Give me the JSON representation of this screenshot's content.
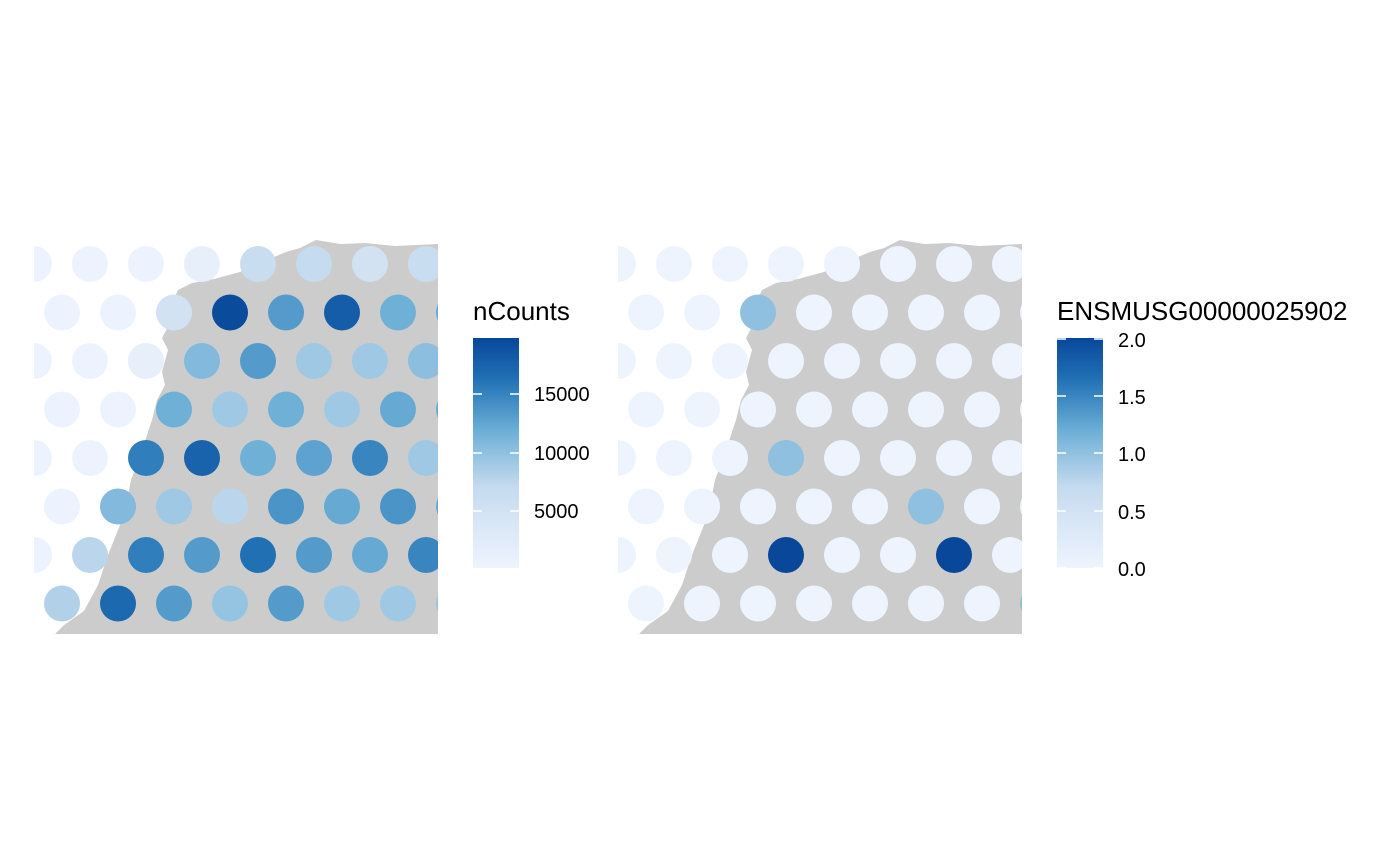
{
  "chart_data": [
    {
      "type": "heatmap",
      "subtype": "spatial spot plot on tissue section",
      "legend_title": "nCounts",
      "legend_position": "right",
      "colorbar_ticks": [
        "5000",
        "10000",
        "15000"
      ],
      "color_range": [
        800,
        19800
      ],
      "low_color": "#EEF4FE",
      "high_color": "#08479A",
      "tissue_color": "#CCCCCC",
      "rows": [
        [
          1000,
          1000,
          1000,
          2000,
          7000,
          7500,
          5500,
          7000
        ],
        [
          1000,
          1000,
          5500,
          19500,
          13500,
          18000,
          12000,
          12500
        ],
        [
          1000,
          1000,
          2000,
          11000,
          13500,
          9500,
          9500,
          10500
        ],
        [
          1000,
          1000,
          12000,
          9500,
          12000,
          9500,
          12500,
          12500
        ],
        [
          1000,
          1000,
          15500,
          17500,
          12000,
          13000,
          15000,
          9500
        ],
        [
          1000,
          11000,
          9500,
          8000,
          14000,
          12500,
          14000,
          12500
        ],
        [
          1000,
          8000,
          15500,
          13500,
          16500,
          13500,
          12500,
          15000
        ],
        [
          8500,
          17000,
          13500,
          10000,
          13500,
          9500,
          9500,
          10000
        ]
      ]
    },
    {
      "type": "heatmap",
      "subtype": "spatial spot plot on tissue section",
      "legend_title": "ENSMUSG00000025902",
      "legend_position": "right",
      "colorbar_ticks": [
        "0.0",
        "0.5",
        "1.0",
        "1.5",
        "2.0"
      ],
      "color_range": [
        0,
        2
      ],
      "low_color": "#EEF4FE",
      "high_color": "#08479A",
      "tissue_color": "#CCCCCC",
      "rows": [
        [
          0,
          0,
          0,
          0,
          0,
          0,
          0,
          0
        ],
        [
          0,
          0,
          1,
          0,
          0,
          0,
          0,
          0
        ],
        [
          0,
          0,
          0,
          0,
          0,
          0,
          0,
          0
        ],
        [
          0,
          0,
          0,
          0,
          0,
          0,
          0,
          0
        ],
        [
          0,
          0,
          0,
          1,
          0,
          0,
          0,
          0
        ],
        [
          0,
          0,
          0,
          0,
          0,
          1,
          0,
          0
        ],
        [
          0,
          0,
          0,
          2,
          0,
          0,
          2,
          0
        ],
        [
          0,
          0,
          0,
          0,
          0,
          0,
          0,
          1
        ]
      ]
    }
  ]
}
